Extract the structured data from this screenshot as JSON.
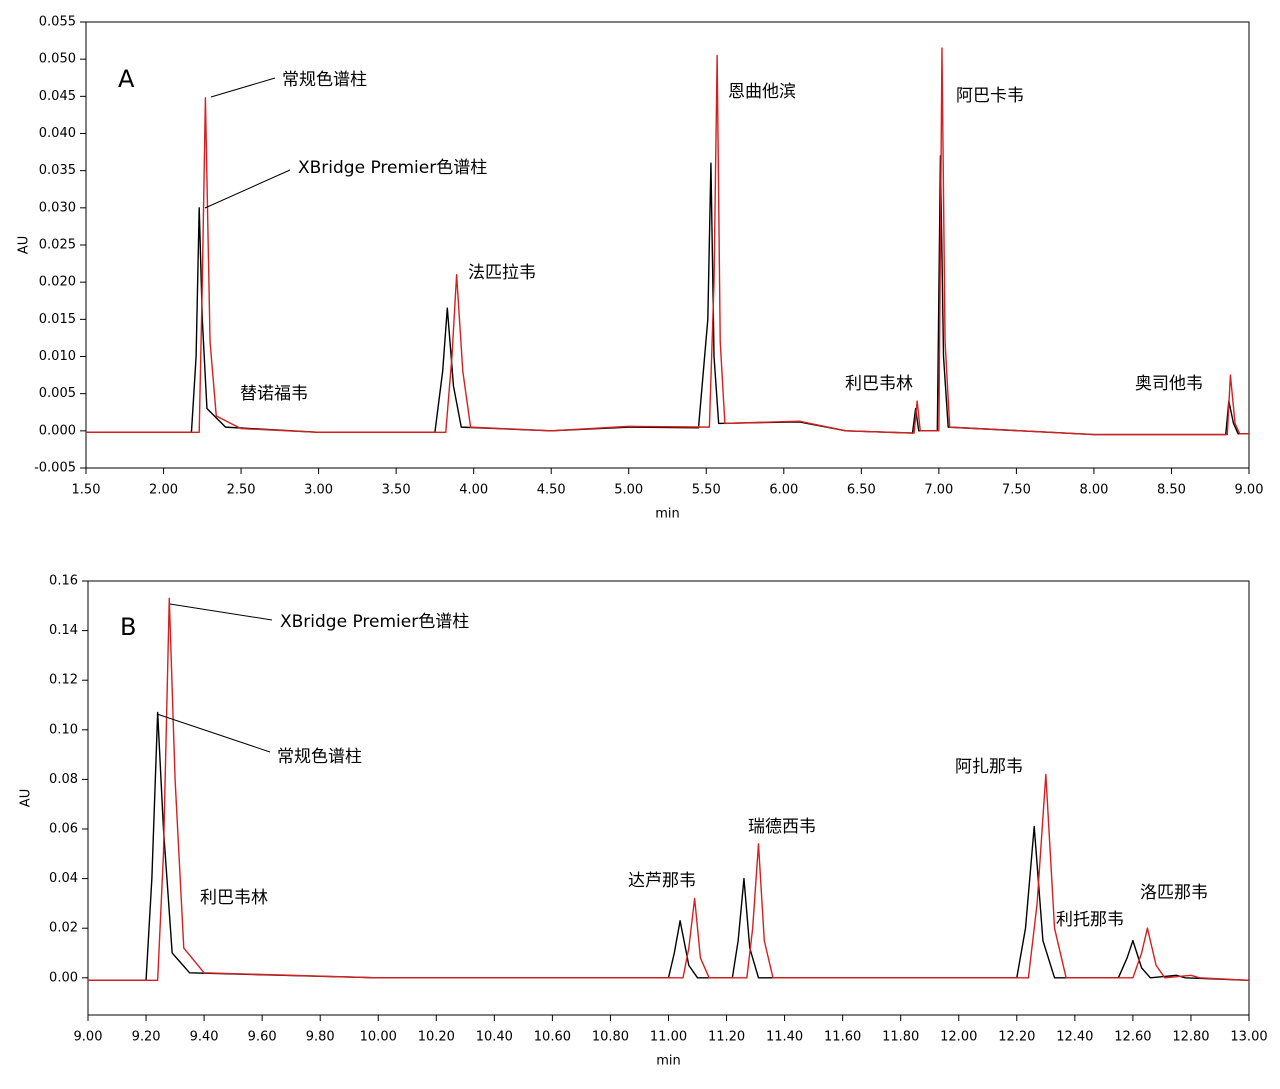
{
  "chart_data": [
    {
      "type": "line",
      "panel": "A",
      "xlabel": "min",
      "ylabel": "AU",
      "xlim": [
        1.5,
        9.0
      ],
      "xticks": [
        {
          "value": 1.5,
          "label": "1.50"
        },
        {
          "value": 2.0,
          "label": "2.00"
        },
        {
          "value": 2.5,
          "label": "2.50"
        },
        {
          "value": 3.0,
          "label": "3.00"
        },
        {
          "value": 3.5,
          "label": "3.50"
        },
        {
          "value": 4.0,
          "label": "4.00"
        },
        {
          "value": 4.5,
          "label": "4.50"
        },
        {
          "value": 5.0,
          "label": "5.00"
        },
        {
          "value": 5.5,
          "label": "5.50"
        },
        {
          "value": 6.0,
          "label": "6.00"
        },
        {
          "value": 6.5,
          "label": "6.50"
        },
        {
          "value": 7.0,
          "label": "7.00"
        },
        {
          "value": 7.5,
          "label": "7.50"
        },
        {
          "value": 8.0,
          "label": "8.00"
        },
        {
          "value": 8.5,
          "label": "8.50"
        },
        {
          "value": 9.0,
          "label": "9.00"
        }
      ],
      "ylim": [
        -0.005,
        0.055
      ],
      "yticks": [
        -0.005,
        {
          "value": 0,
          "label": "0.000"
        },
        0.005,
        {
          "value": 0.01,
          "label": "0.010"
        },
        0.015,
        {
          "value": 0.02,
          "label": "0.020"
        },
        0.025,
        {
          "value": 0.03,
          "label": "0.030"
        },
        0.035,
        {
          "value": 0.04,
          "label": "0.040"
        },
        0.045,
        {
          "value": 0.05,
          "label": "0.050"
        },
        0.055
      ],
      "series": [
        {
          "name": "常规色谱柱",
          "color": "#000000",
          "x": [
            1.5,
            2.18,
            2.21,
            2.23,
            2.25,
            2.28,
            2.4,
            3.0,
            3.75,
            3.8,
            3.83,
            3.87,
            3.92,
            4.5,
            5.0,
            5.45,
            5.51,
            5.53,
            5.55,
            5.58,
            6.1,
            6.4,
            6.83,
            6.85,
            6.87,
            6.99,
            7.01,
            7.03,
            7.06,
            8.0,
            8.85,
            8.87,
            8.9,
            8.93,
            9.0
          ],
          "values": [
            -0.0002,
            -0.0002,
            0.01,
            0.03,
            0.015,
            0.003,
            0.0005,
            -0.0002,
            -0.0002,
            0.008,
            0.0165,
            0.006,
            0.0005,
            0,
            0.0005,
            0.0004,
            0.015,
            0.036,
            0.01,
            0.001,
            0.0012,
            0,
            -0.0003,
            0.003,
            0,
            0,
            0.037,
            0.01,
            0.0005,
            -0.0005,
            -0.0005,
            0.004,
            0.001,
            -0.0004,
            -0.0004
          ]
        },
        {
          "name": "XBridge Premier色谱柱",
          "color": "#d42020",
          "x": [
            1.5,
            2.23,
            2.25,
            2.27,
            2.3,
            2.34,
            2.5,
            3.0,
            3.82,
            3.86,
            3.89,
            3.93,
            3.98,
            4.5,
            5.0,
            5.52,
            5.55,
            5.57,
            5.59,
            5.62,
            6.1,
            6.4,
            6.84,
            6.86,
            6.88,
            7.0,
            7.02,
            7.04,
            7.07,
            8.0,
            8.86,
            8.88,
            8.91,
            8.94,
            9.0
          ],
          "values": [
            -0.0002,
            -0.0002,
            0.02,
            0.0448,
            0.012,
            0.002,
            0.0003,
            -0.0002,
            -0.0002,
            0.01,
            0.021,
            0.008,
            0.0005,
            0,
            0.0006,
            0.0005,
            0.02,
            0.0505,
            0.012,
            0.001,
            0.0013,
            0,
            -0.0003,
            0.004,
            0,
            0,
            0.0515,
            0.012,
            0.0005,
            -0.0005,
            -0.0005,
            0.0075,
            0.001,
            -0.0004,
            -0.0004
          ]
        }
      ],
      "annotations": [
        "替诺福韦",
        "法匹拉韦",
        "恩曲他滨",
        "利巴韦林",
        "阿巴卡韦",
        "奥司他韦"
      ]
    },
    {
      "type": "line",
      "panel": "B",
      "xlabel": "min",
      "ylabel": "AU",
      "xlim": [
        9.0,
        13.0
      ],
      "xticks": [
        {
          "value": 9.0,
          "label": "9.00"
        },
        {
          "value": 9.2,
          "label": "9.20"
        },
        {
          "value": 9.4,
          "label": "9.40"
        },
        {
          "value": 9.6,
          "label": "9.60"
        },
        {
          "value": 9.8,
          "label": "9.80"
        },
        {
          "value": 10.0,
          "label": "10.00"
        },
        {
          "value": 10.2,
          "label": "10.20"
        },
        {
          "value": 10.4,
          "label": "10.40"
        },
        {
          "value": 10.6,
          "label": "10.60"
        },
        {
          "value": 10.8,
          "label": "10.80"
        },
        {
          "value": 11.0,
          "label": "11.00"
        },
        {
          "value": 11.2,
          "label": "11.20"
        },
        {
          "value": 11.4,
          "label": "11.40"
        },
        {
          "value": 11.6,
          "label": "11.60"
        },
        {
          "value": 11.8,
          "label": "11.80"
        },
        {
          "value": 12.0,
          "label": "12.00"
        },
        {
          "value": 12.2,
          "label": "12.20"
        },
        {
          "value": 12.4,
          "label": "12.40"
        },
        {
          "value": 12.6,
          "label": "12.60"
        },
        {
          "value": 12.8,
          "label": "12.80"
        },
        {
          "value": 13.0,
          "label": "13.00"
        }
      ],
      "ylim": [
        -0.015,
        0.16
      ],
      "yticks": [
        {
          "value": 0,
          "label": "0.00"
        },
        0.02,
        0.04,
        0.06,
        0.08,
        {
          "value": 0.1,
          "label": "0.10"
        },
        0.12,
        0.14,
        0.16
      ],
      "series": [
        {
          "name": "常规色谱柱",
          "color": "#000000",
          "x": [
            9.0,
            9.2,
            9.22,
            9.24,
            9.26,
            9.29,
            9.35,
            10.0,
            11.0,
            11.02,
            11.04,
            11.07,
            11.1,
            11.22,
            11.24,
            11.26,
            11.28,
            11.31,
            12.2,
            12.23,
            12.26,
            12.29,
            12.33,
            12.55,
            12.58,
            12.6,
            12.63,
            12.66,
            12.75,
            12.78,
            13.0
          ],
          "values": [
            -0.001,
            -0.001,
            0.04,
            0.107,
            0.06,
            0.01,
            0.002,
            0,
            0,
            0.01,
            0.023,
            0.005,
            0,
            0,
            0.015,
            0.04,
            0.012,
            0,
            0,
            0.02,
            0.061,
            0.015,
            0,
            0,
            0.008,
            0.015,
            0.004,
            0,
            0.001,
            0,
            -0.001
          ]
        },
        {
          "name": "XBridge Premier色谱柱",
          "color": "#d42020",
          "x": [
            9.0,
            9.24,
            9.26,
            9.28,
            9.3,
            9.33,
            9.4,
            10.0,
            11.05,
            11.07,
            11.09,
            11.11,
            11.14,
            11.27,
            11.29,
            11.31,
            11.33,
            11.36,
            12.24,
            12.27,
            12.3,
            12.33,
            12.37,
            12.6,
            12.63,
            12.65,
            12.68,
            12.71,
            12.8,
            12.83,
            13.0
          ],
          "values": [
            -0.001,
            -0.001,
            0.05,
            0.153,
            0.08,
            0.012,
            0.002,
            0,
            0,
            0.012,
            0.032,
            0.008,
            0,
            0,
            0.02,
            0.054,
            0.015,
            0,
            0,
            0.03,
            0.082,
            0.02,
            0,
            0,
            0.01,
            0.02,
            0.005,
            0,
            0.001,
            0,
            -0.001
          ]
        }
      ],
      "annotations": [
        "利巴韦林",
        "达芦那韦",
        "瑞德西韦",
        "阿扎那韦",
        "利托那韦",
        "洛匹那韦"
      ]
    }
  ]
}
